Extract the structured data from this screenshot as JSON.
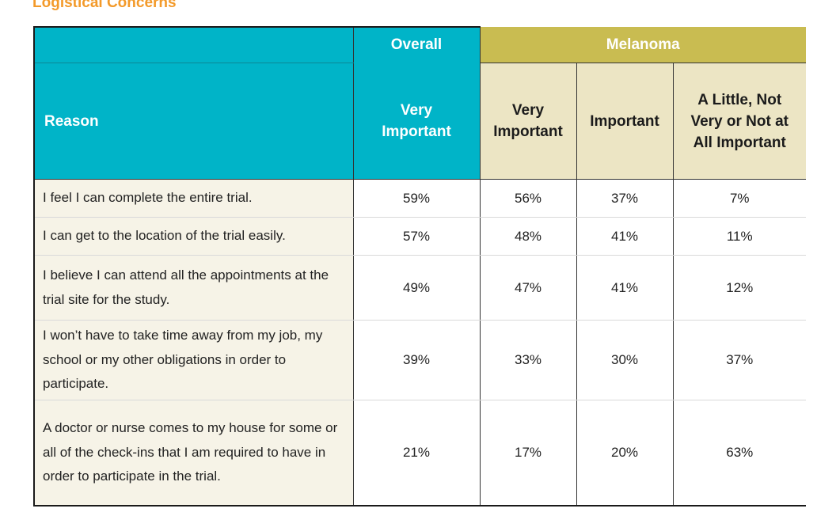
{
  "title": "Logistical Concerns",
  "header": {
    "reason": "Reason",
    "overall_group": "Overall",
    "melanoma_group": "Melanoma",
    "overall_very_important": "Very Important",
    "mel_very_important": "Very Important",
    "mel_important": "Important",
    "mel_little": "A Little, Not Very or Not at All Important"
  },
  "rows": [
    {
      "reason": "I feel I can complete the entire trial.",
      "overall": "59%",
      "very": "56%",
      "important": "37%",
      "little": "7%"
    },
    {
      "reason": "I can get to the location of the trial easily.",
      "overall": "57%",
      "very": "48%",
      "important": "41%",
      "little": "11%"
    },
    {
      "reason": "I believe I can attend all the appointments at the trial site for the study.",
      "overall": "49%",
      "very": "47%",
      "important": "41%",
      "little": "12%"
    },
    {
      "reason": "I won’t have to take time away from my job, my school or my other obligations in order to participate.",
      "overall": "39%",
      "very": "33%",
      "important": "30%",
      "little": "37%"
    },
    {
      "reason": "A doctor or nurse comes to my house for some or all of the check-ins that I am required to have in order to participate in the trial.",
      "overall": "21%",
      "very": "17%",
      "important": "20%",
      "little": "63%"
    }
  ]
}
